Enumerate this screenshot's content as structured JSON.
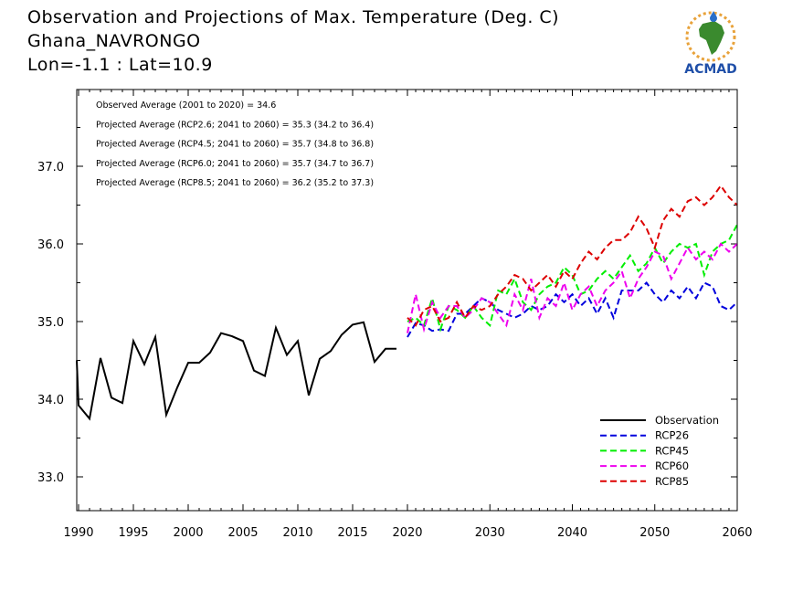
{
  "header": {
    "title": "Observation and Projections of Max. Temperature (Deg. C)",
    "station": "Ghana_NAVRONGO",
    "coords": "Lon=-1.1 : Lat=10.9"
  },
  "logo": {
    "text": "ACMAD"
  },
  "annotations": [
    "Observed Average (2001 to 2020) = 34.6",
    "Projected Average (RCP2.6; 2041 to 2060) = 35.3 (34.2 to 36.4)",
    "Projected Average (RCP4.5; 2041 to 2060) = 35.7 (34.8 to 36.8)",
    "Projected Average (RCP6.0; 2041 to 2060) = 35.7 (34.7 to 36.7)",
    "Projected Average (RCP8.5; 2041 to 2060) = 36.2 (35.2 to 37.3)"
  ],
  "colors": {
    "observation": "#000000",
    "rcp26": "#0000dd",
    "rcp45": "#00ee00",
    "rcp60": "#ee00ee",
    "rcp85": "#dd0000"
  },
  "chart_data": {
    "type": "line",
    "legend_position": "bottom-right",
    "xlim": [
      1989,
      2060
    ],
    "ylim": [
      32.55,
      39.0
    ],
    "x_ticks": [
      1990,
      1995,
      2000,
      2005,
      2010,
      2015,
      2020,
      2030,
      2040,
      2050,
      2060
    ],
    "y_ticks": [
      33.0,
      34.0,
      35.0,
      36.0,
      37.0
    ],
    "y_tick_labels": [
      "33.0",
      "34.0",
      "35.0",
      "36.0",
      "37.0"
    ],
    "series": [
      {
        "name": "Observation",
        "key": "observation",
        "dashed": false,
        "x": [
          1989,
          1990,
          1991,
          1992,
          1993,
          1994,
          1995,
          1996,
          1997,
          1998,
          1999,
          2000,
          2001,
          2002,
          2003,
          2004,
          2005,
          2006,
          2007,
          2008,
          2009,
          2010,
          2011,
          2012,
          2013,
          2014,
          2015,
          2016,
          2017,
          2018,
          2019
        ],
        "values": [
          34.5,
          33.92,
          33.75,
          34.53,
          34.02,
          33.95,
          34.75,
          34.45,
          34.8,
          33.8,
          34.15,
          34.47,
          34.47,
          34.6,
          34.85,
          34.81,
          34.75,
          34.37,
          34.3,
          34.92,
          34.57,
          34.75,
          34.05,
          34.52,
          34.62,
          34.83,
          34.96,
          34.99,
          34.48,
          34.65,
          34.65
        ]
      },
      {
        "name": "RCP26",
        "key": "rcp26",
        "dashed": true,
        "x": [
          2020,
          2021,
          2022,
          2023,
          2024,
          2025,
          2026,
          2027,
          2028,
          2029,
          2030,
          2031,
          2032,
          2033,
          2034,
          2035,
          2036,
          2037,
          2038,
          2039,
          2040,
          2041,
          2042,
          2043,
          2044,
          2045,
          2046,
          2047,
          2048,
          2049,
          2050,
          2051,
          2052,
          2053,
          2054,
          2055,
          2056,
          2057,
          2058,
          2059,
          2060
        ],
        "values": [
          34.8,
          34.98,
          34.95,
          34.88,
          34.9,
          34.88,
          35.1,
          35.1,
          35.2,
          35.3,
          35.25,
          35.15,
          35.1,
          35.05,
          35.1,
          35.2,
          35.15,
          35.2,
          35.35,
          35.25,
          35.35,
          35.2,
          35.3,
          35.1,
          35.3,
          35.05,
          35.4,
          35.4,
          35.4,
          35.5,
          35.35,
          35.25,
          35.4,
          35.3,
          35.45,
          35.3,
          35.5,
          35.45,
          35.2,
          35.15,
          35.25
        ]
      },
      {
        "name": "RCP45",
        "key": "rcp45",
        "dashed": true,
        "x": [
          2020,
          2021,
          2022,
          2023,
          2024,
          2025,
          2026,
          2027,
          2028,
          2029,
          2030,
          2031,
          2032,
          2033,
          2034,
          2035,
          2036,
          2037,
          2038,
          2039,
          2040,
          2041,
          2042,
          2043,
          2044,
          2045,
          2046,
          2047,
          2048,
          2049,
          2050,
          2051,
          2052,
          2053,
          2054,
          2055,
          2056,
          2057,
          2058,
          2059,
          2060
        ],
        "values": [
          35.0,
          35.05,
          34.95,
          35.3,
          34.9,
          35.2,
          35.15,
          35.05,
          35.2,
          35.05,
          34.95,
          35.4,
          35.35,
          35.55,
          35.25,
          35.15,
          35.35,
          35.45,
          35.5,
          35.7,
          35.6,
          35.35,
          35.4,
          35.55,
          35.65,
          35.55,
          35.7,
          35.85,
          35.65,
          35.75,
          35.95,
          35.75,
          35.9,
          36.0,
          35.95,
          36.0,
          35.6,
          35.9,
          36.0,
          36.05,
          36.25
        ]
      },
      {
        "name": "RCP60",
        "key": "rcp60",
        "dashed": true,
        "x": [
          2020,
          2021,
          2022,
          2023,
          2024,
          2025,
          2026,
          2027,
          2028,
          2029,
          2030,
          2031,
          2032,
          2033,
          2034,
          2035,
          2036,
          2037,
          2038,
          2039,
          2040,
          2041,
          2042,
          2043,
          2044,
          2045,
          2046,
          2047,
          2048,
          2049,
          2050,
          2051,
          2052,
          2053,
          2054,
          2055,
          2056,
          2057,
          2058,
          2059,
          2060
        ],
        "values": [
          34.85,
          35.35,
          34.9,
          35.25,
          35.05,
          35.2,
          35.2,
          35.05,
          35.15,
          35.3,
          35.25,
          35.1,
          34.95,
          35.35,
          35.15,
          35.55,
          35.05,
          35.3,
          35.2,
          35.5,
          35.15,
          35.35,
          35.45,
          35.2,
          35.4,
          35.5,
          35.65,
          35.3,
          35.55,
          35.7,
          35.9,
          35.85,
          35.55,
          35.75,
          35.95,
          35.8,
          35.9,
          35.8,
          36.0,
          35.9,
          36.0
        ]
      },
      {
        "name": "RCP85",
        "key": "rcp85",
        "dashed": true,
        "x": [
          2020,
          2021,
          2022,
          2023,
          2024,
          2025,
          2026,
          2027,
          2028,
          2029,
          2030,
          2031,
          2032,
          2033,
          2034,
          2035,
          2036,
          2037,
          2038,
          2039,
          2040,
          2041,
          2042,
          2043,
          2044,
          2045,
          2046,
          2047,
          2048,
          2049,
          2050,
          2051,
          2052,
          2053,
          2054,
          2055,
          2056,
          2057,
          2058,
          2059,
          2060
        ],
        "values": [
          35.05,
          34.95,
          35.15,
          35.2,
          35.0,
          35.05,
          35.25,
          35.05,
          35.2,
          35.15,
          35.2,
          35.35,
          35.45,
          35.6,
          35.55,
          35.4,
          35.5,
          35.6,
          35.45,
          35.65,
          35.55,
          35.75,
          35.9,
          35.8,
          35.95,
          36.05,
          36.05,
          36.15,
          36.35,
          36.2,
          35.95,
          36.3,
          36.45,
          36.35,
          36.55,
          36.6,
          36.5,
          36.6,
          36.75,
          36.6,
          36.5
        ]
      }
    ]
  }
}
